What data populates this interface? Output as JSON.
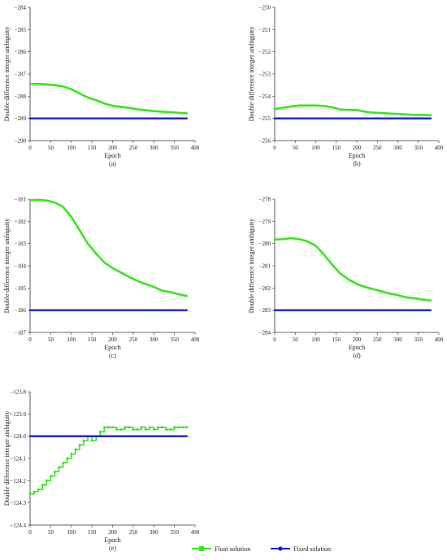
{
  "colors": {
    "float": "#39e61e",
    "fixed": "#1c1ccc",
    "axis": "#333333"
  },
  "legend": {
    "float_label": "Float solution",
    "fixed_label": "Fixed solution",
    "float_marker": "square",
    "fixed_marker": "dot"
  },
  "chart_data": [
    {
      "type": "line",
      "caption": "(a)",
      "xlabel": "Epoch",
      "ylabel": "Double difference integer ambiguity",
      "xlim": [
        0,
        400
      ],
      "ylim": [
        -290,
        -284
      ],
      "x_ticks": [
        0,
        50,
        100,
        150,
        200,
        250,
        300,
        350,
        400
      ],
      "y_ticks": [
        -290,
        -289,
        -288,
        -287,
        -286,
        -285,
        -284
      ],
      "series": [
        {
          "name": "Float solution",
          "color": "#39e61e",
          "step": false,
          "x": [
            0,
            20,
            40,
            60,
            80,
            100,
            120,
            140,
            160,
            180,
            200,
            220,
            240,
            260,
            280,
            300,
            320,
            340,
            360,
            380
          ],
          "y": [
            -287.45,
            -287.45,
            -287.47,
            -287.5,
            -287.56,
            -287.68,
            -287.88,
            -288.06,
            -288.18,
            -288.33,
            -288.43,
            -288.48,
            -288.53,
            -288.59,
            -288.63,
            -288.67,
            -288.7,
            -288.72,
            -288.75,
            -288.77
          ]
        },
        {
          "name": "Fixed solution",
          "color": "#1c1ccc",
          "step": false,
          "x": [
            0,
            380
          ],
          "y": [
            -289,
            -289
          ]
        }
      ]
    },
    {
      "type": "line",
      "caption": "(b)",
      "xlabel": "Epoch",
      "ylabel": "Double difference integer ambiguity",
      "xlim": [
        0,
        400
      ],
      "ylim": [
        -256,
        -250
      ],
      "x_ticks": [
        0,
        50,
        100,
        150,
        200,
        250,
        300,
        350,
        400
      ],
      "y_ticks": [
        -256,
        -255,
        -254,
        -253,
        -252,
        -251,
        -250
      ],
      "series": [
        {
          "name": "Float solution",
          "color": "#39e61e",
          "step": false,
          "x": [
            0,
            20,
            40,
            60,
            80,
            100,
            120,
            140,
            160,
            180,
            200,
            220,
            240,
            260,
            280,
            300,
            320,
            340,
            360,
            380
          ],
          "y": [
            -254.58,
            -254.52,
            -254.46,
            -254.42,
            -254.42,
            -254.42,
            -254.44,
            -254.5,
            -254.6,
            -254.62,
            -254.62,
            -254.7,
            -254.74,
            -254.76,
            -254.78,
            -254.8,
            -254.82,
            -254.84,
            -254.84,
            -254.86
          ]
        },
        {
          "name": "Fixed solution",
          "color": "#1c1ccc",
          "step": false,
          "x": [
            0,
            380
          ],
          "y": [
            -255,
            -255
          ]
        }
      ]
    },
    {
      "type": "line",
      "caption": "(c)",
      "xlabel": "Epoch",
      "ylabel": "Double difference integer ambiguity",
      "xlim": [
        0,
        400
      ],
      "ylim": [
        -187,
        -181
      ],
      "x_ticks": [
        0,
        50,
        100,
        150,
        200,
        250,
        300,
        350,
        400
      ],
      "y_ticks": [
        -187,
        -186,
        -185,
        -184,
        -183,
        -182,
        -181
      ],
      "series": [
        {
          "name": "Float solution",
          "color": "#39e61e",
          "step": false,
          "x": [
            0,
            20,
            40,
            60,
            80,
            100,
            120,
            140,
            160,
            180,
            200,
            220,
            240,
            260,
            280,
            300,
            320,
            340,
            360,
            380
          ],
          "y": [
            -181.05,
            -181.03,
            -181.06,
            -181.15,
            -181.35,
            -181.8,
            -182.4,
            -183.0,
            -183.45,
            -183.85,
            -184.1,
            -184.3,
            -184.5,
            -184.68,
            -184.82,
            -184.95,
            -185.12,
            -185.18,
            -185.28,
            -185.36
          ]
        },
        {
          "name": "Fixed solution",
          "color": "#1c1ccc",
          "step": false,
          "x": [
            0,
            380
          ],
          "y": [
            -186,
            -186
          ]
        }
      ]
    },
    {
      "type": "line",
      "caption": "(d)",
      "xlabel": "Epoch",
      "ylabel": "Double difference integer ambiguity",
      "xlim": [
        0,
        400
      ],
      "ylim": [
        -284,
        -278
      ],
      "x_ticks": [
        0,
        50,
        100,
        150,
        200,
        250,
        300,
        350,
        400
      ],
      "y_ticks": [
        -284,
        -283,
        -282,
        -281,
        -280,
        -279,
        -278
      ],
      "series": [
        {
          "name": "Float solution",
          "color": "#39e61e",
          "step": false,
          "x": [
            0,
            20,
            40,
            60,
            80,
            100,
            120,
            140,
            160,
            180,
            200,
            220,
            240,
            260,
            280,
            300,
            320,
            340,
            360,
            380
          ],
          "y": [
            -279.82,
            -279.8,
            -279.76,
            -279.8,
            -279.9,
            -280.1,
            -280.5,
            -280.95,
            -281.35,
            -281.62,
            -281.82,
            -281.95,
            -282.05,
            -282.15,
            -282.25,
            -282.32,
            -282.42,
            -282.46,
            -282.52,
            -282.56
          ]
        },
        {
          "name": "Fixed solution",
          "color": "#1c1ccc",
          "step": false,
          "x": [
            0,
            380
          ],
          "y": [
            -283,
            -283
          ]
        }
      ]
    },
    {
      "type": "line",
      "caption": "(e)",
      "xlabel": "Epoch",
      "ylabel": "Double difference integer ambiguity",
      "xlim": [
        0,
        400
      ],
      "ylim": [
        -124.4,
        -123.8
      ],
      "x_ticks": [
        0,
        50,
        100,
        150,
        200,
        250,
        300,
        350,
        400
      ],
      "y_ticks": [
        -124.4,
        -124.3,
        -124.2,
        -124.1,
        -124.0,
        -123.9,
        -123.8
      ],
      "series": [
        {
          "name": "Float solution",
          "color": "#39e61e",
          "step": true,
          "x": [
            0,
            10,
            20,
            30,
            40,
            50,
            60,
            70,
            80,
            90,
            100,
            110,
            120,
            130,
            140,
            150,
            160,
            170,
            180,
            190,
            200,
            210,
            220,
            230,
            240,
            250,
            260,
            270,
            280,
            290,
            300,
            310,
            320,
            330,
            340,
            350,
            360,
            370,
            380
          ],
          "y": [
            -124.26,
            -124.25,
            -124.24,
            -124.22,
            -124.2,
            -124.18,
            -124.16,
            -124.14,
            -124.12,
            -124.1,
            -124.08,
            -124.06,
            -124.04,
            -124.02,
            -124.0,
            -124.02,
            -124.0,
            -123.98,
            -123.96,
            -123.96,
            -123.96,
            -123.97,
            -123.97,
            -123.96,
            -123.96,
            -123.97,
            -123.97,
            -123.96,
            -123.97,
            -123.96,
            -123.97,
            -123.96,
            -123.96,
            -123.97,
            -123.97,
            -123.96,
            -123.96,
            -123.96,
            -123.96
          ]
        },
        {
          "name": "Fixed solution",
          "color": "#1c1ccc",
          "step": false,
          "x": [
            0,
            380
          ],
          "y": [
            -124.0,
            -124.0
          ]
        }
      ]
    }
  ]
}
